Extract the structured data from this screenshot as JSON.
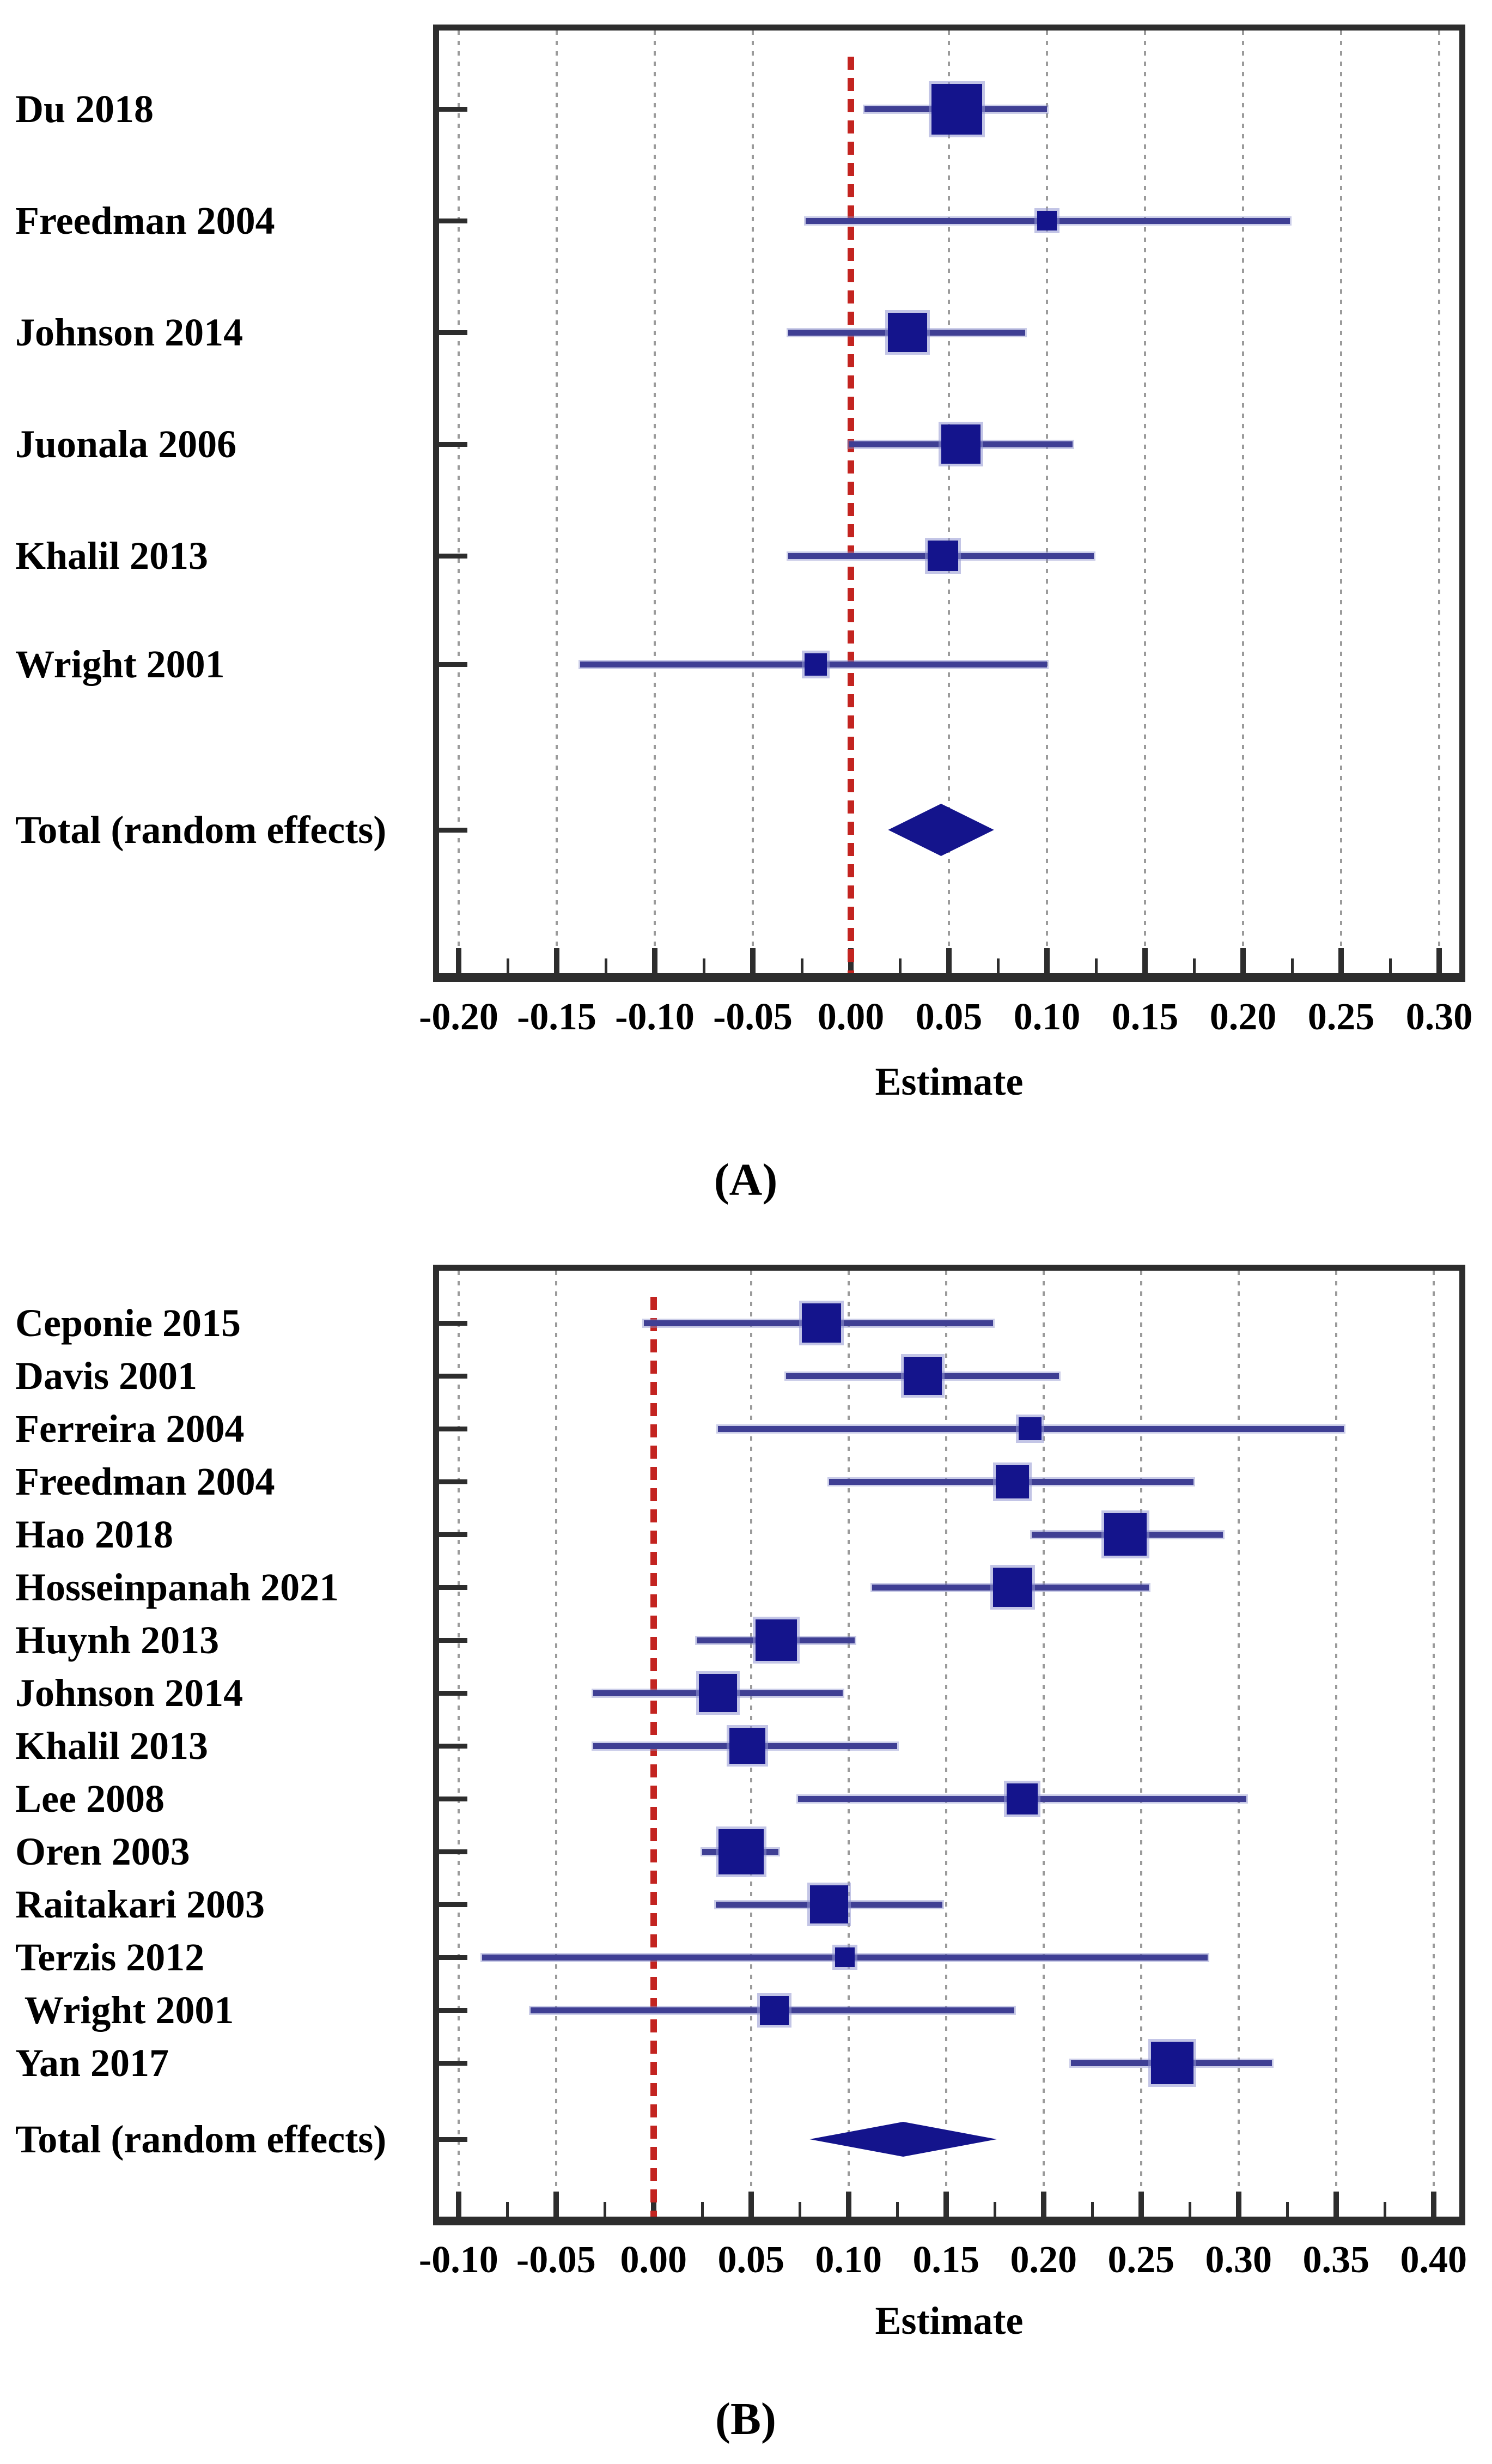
{
  "colors": {
    "marker": "#14148c",
    "marker_halo": "#9196d2",
    "ci_line": "#3f3f94",
    "zero_line": "#c32420",
    "grid_line": "#9b9b9b",
    "frame": "#2d2d2d",
    "background": "#ffffff",
    "text": "#000000"
  },
  "chart_data": [
    {
      "type": "forest",
      "panel": "A",
      "caption": "(A)",
      "xlabel": "Estimate",
      "x_tick_labels": [
        "-0.20",
        "-0.15",
        "-0.10",
        "-0.05",
        "0.00",
        "0.05",
        "0.10",
        "0.15",
        "0.20",
        "0.25",
        "0.30"
      ],
      "x_ticks": [
        -0.2,
        -0.15,
        -0.1,
        -0.05,
        0.0,
        0.05,
        0.1,
        0.15,
        0.2,
        0.25,
        0.3
      ],
      "xlim": [
        -0.21,
        0.31
      ],
      "zero_line": 0.0,
      "grid": true,
      "studies": [
        {
          "label": "Du 2018",
          "estimate": 0.054,
          "ci_low": 0.007,
          "ci_high": 0.1,
          "marker_px": 93
        },
        {
          "label": "Freedman 2004",
          "estimate": 0.1,
          "ci_low": -0.023,
          "ci_high": 0.224,
          "marker_px": 36
        },
        {
          "label": "Johnson 2014",
          "estimate": 0.029,
          "ci_low": -0.032,
          "ci_high": 0.089,
          "marker_px": 72
        },
        {
          "label": "Juonala 2006",
          "estimate": 0.056,
          "ci_low": -0.001,
          "ci_high": 0.113,
          "marker_px": 72
        },
        {
          "label": "Khalil 2013",
          "estimate": 0.047,
          "ci_low": -0.032,
          "ci_high": 0.124,
          "marker_px": 56
        },
        {
          "label": "Wright 2001",
          "estimate": -0.018,
          "ci_low": -0.138,
          "ci_high": 0.1,
          "marker_px": 41
        }
      ],
      "total": {
        "label": "Total (random effects)",
        "center": 0.046,
        "ci_low": 0.019,
        "ci_high": 0.073,
        "diamond_h": 96
      }
    },
    {
      "type": "forest",
      "panel": "B",
      "caption": "(B)",
      "xlabel": "Estimate",
      "x_tick_labels": [
        "-0.10",
        "-0.05",
        "0.00",
        "0.05",
        "0.10",
        "0.15",
        "0.20",
        "0.25",
        "0.30",
        "0.35",
        "0.40"
      ],
      "x_ticks": [
        -0.1,
        -0.05,
        0.0,
        0.05,
        0.1,
        0.15,
        0.2,
        0.25,
        0.3,
        0.35,
        0.4
      ],
      "xlim": [
        -0.11,
        0.403
      ],
      "zero_line": 0.0,
      "grid": true,
      "studies": [
        {
          "label": "Ceponie 2015",
          "estimate": 0.086,
          "ci_low": -0.005,
          "ci_high": 0.174,
          "marker_px": 72
        },
        {
          "label": "Davis 2001",
          "estimate": 0.138,
          "ci_low": 0.068,
          "ci_high": 0.208,
          "marker_px": 70
        },
        {
          "label": "Ferreira 2004",
          "estimate": 0.193,
          "ci_low": 0.033,
          "ci_high": 0.354,
          "marker_px": 42
        },
        {
          "label": "Freedman 2004",
          "estimate": 0.184,
          "ci_low": 0.09,
          "ci_high": 0.277,
          "marker_px": 61
        },
        {
          "label": "Hao 2018",
          "estimate": 0.242,
          "ci_low": 0.194,
          "ci_high": 0.292,
          "marker_px": 78
        },
        {
          "label": "Hosseinpanah 2021",
          "estimate": 0.184,
          "ci_low": 0.112,
          "ci_high": 0.254,
          "marker_px": 72
        },
        {
          "label": "Huynh 2013",
          "estimate": 0.063,
          "ci_low": 0.022,
          "ci_high": 0.103,
          "marker_px": 76
        },
        {
          "label": "Johnson 2014",
          "estimate": 0.033,
          "ci_low": -0.031,
          "ci_high": 0.097,
          "marker_px": 70
        },
        {
          "label": "Khalil 2013",
          "estimate": 0.048,
          "ci_low": -0.031,
          "ci_high": 0.125,
          "marker_px": 66
        },
        {
          "label": "Lee 2008",
          "estimate": 0.189,
          "ci_low": 0.074,
          "ci_high": 0.304,
          "marker_px": 57
        },
        {
          "label": "Oren 2003",
          "estimate": 0.045,
          "ci_low": 0.025,
          "ci_high": 0.064,
          "marker_px": 83
        },
        {
          "label": "Raitakari 2003",
          "estimate": 0.09,
          "ci_low": 0.032,
          "ci_high": 0.148,
          "marker_px": 70
        },
        {
          "label": "Terzis 2012",
          "estimate": 0.098,
          "ci_low": -0.088,
          "ci_high": 0.284,
          "marker_px": 36
        },
        {
          "label": " Wright 2001",
          "estimate": 0.062,
          "ci_low": -0.063,
          "ci_high": 0.185,
          "marker_px": 53
        },
        {
          "label": "Yan 2017",
          "estimate": 0.266,
          "ci_low": 0.214,
          "ci_high": 0.317,
          "marker_px": 78
        }
      ],
      "total": {
        "label": "Total (random effects)",
        "center": 0.128,
        "ci_low": 0.08,
        "ci_high": 0.176,
        "diamond_h": 64
      }
    }
  ]
}
